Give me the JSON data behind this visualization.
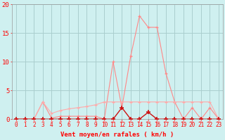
{
  "x": [
    0,
    1,
    2,
    3,
    4,
    5,
    6,
    7,
    8,
    9,
    10,
    11,
    12,
    13,
    14,
    15,
    16,
    17,
    18,
    19,
    20,
    21,
    22,
    23
  ],
  "line1": [
    0,
    0,
    0,
    3,
    0.2,
    0.5,
    0.5,
    0.5,
    0.5,
    0.5,
    0,
    10,
    2,
    11,
    18,
    16,
    16,
    8,
    3,
    0,
    2,
    0,
    2,
    0
  ],
  "line2": [
    0,
    0,
    0,
    3,
    1,
    1.5,
    1.8,
    2,
    2.2,
    2.5,
    3,
    3,
    3,
    3,
    3,
    3,
    3,
    3,
    3,
    3,
    3,
    3,
    3,
    0
  ],
  "line3": [
    0,
    0,
    0,
    0,
    0,
    0,
    0,
    0,
    0,
    0,
    0,
    0,
    2,
    0,
    0,
    1.2,
    0,
    0,
    0,
    0,
    0,
    0,
    0,
    0
  ],
  "bg_color": "#cff0f0",
  "grid_color": "#aacece",
  "line1_color": "#ff8888",
  "line2_color": "#ffaaaa",
  "line3_color": "#cc1111",
  "xlabel": "Vent moyen/en rafales ( km/h )",
  "ylim": [
    0,
    20
  ],
  "xlim": [
    -0.5,
    23.5
  ],
  "yticks": [
    0,
    5,
    10,
    15,
    20
  ],
  "xticks": [
    0,
    1,
    2,
    3,
    4,
    5,
    6,
    7,
    8,
    9,
    10,
    11,
    12,
    13,
    14,
    15,
    16,
    17,
    18,
    19,
    20,
    21,
    22,
    23
  ],
  "arrow_color": "#ff7070"
}
